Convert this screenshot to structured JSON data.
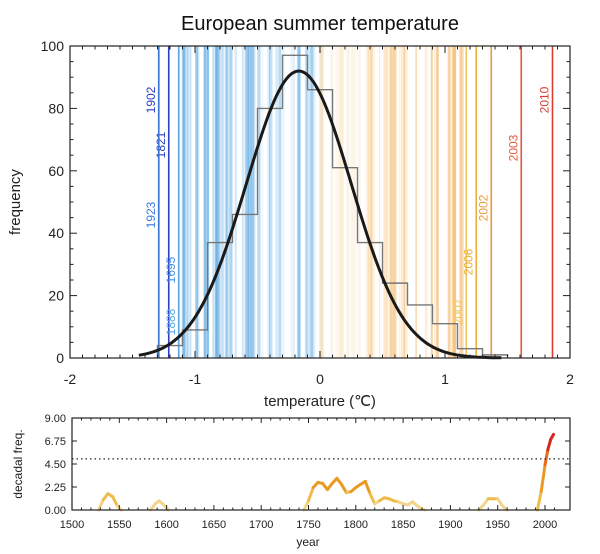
{
  "chart_data": [
    {
      "type": "bar",
      "title": "European summer temperature",
      "xlabel": "temperature (℃)",
      "ylabel": "frequency",
      "xlim": [
        -2,
        2
      ],
      "ylim": [
        0,
        100
      ],
      "xticks": [
        "-2",
        "-1",
        "0",
        "1",
        "2"
      ],
      "yticks": [
        "0",
        "20",
        "40",
        "60",
        "80",
        "100"
      ],
      "histogram": {
        "bin_edges": [
          -1.3,
          -1.1,
          -0.9,
          -0.7,
          -0.5,
          -0.3,
          -0.1,
          0.1,
          0.3,
          0.5,
          0.7,
          0.9,
          1.1,
          1.3,
          1.5
        ],
        "counts": [
          4,
          9,
          37,
          46,
          80,
          97,
          86,
          61,
          37,
          24,
          17,
          11,
          3,
          1
        ]
      },
      "fit_curve": {
        "type": "gaussian",
        "mean": -0.17,
        "sd": 0.42,
        "peak": 92,
        "x_range": [
          -1.45,
          1.45
        ]
      },
      "year_lines": [
        {
          "year": "1902",
          "x": -1.29,
          "color": "#2b3fc4"
        },
        {
          "year": "1821",
          "x": -1.21,
          "color": "#2b3fc4"
        },
        {
          "year": "1923",
          "x": -1.29,
          "color": "#3a78d8"
        },
        {
          "year": "1695",
          "x": -1.13,
          "color": "#3f8fe0"
        },
        {
          "year": "1888",
          "x": -1.13,
          "color": "#5aa8e8"
        },
        {
          "year": "2007",
          "x": 1.17,
          "color": "#f2c75c"
        },
        {
          "year": "2006",
          "x": 1.25,
          "color": "#eeae3a"
        },
        {
          "year": "2002",
          "x": 1.37,
          "color": "#e89b3a"
        },
        {
          "year": "2003",
          "x": 1.61,
          "color": "#e4573e"
        },
        {
          "year": "2010",
          "x": 1.86,
          "color": "#dd3b33"
        }
      ],
      "background_years_note": "thin vertical lines for every year, blue for cold, orange for warm"
    },
    {
      "type": "line",
      "xlabel": "year",
      "ylabel": "decadal freq.",
      "xlim": [
        1500,
        2015
      ],
      "ylim": [
        0,
        9
      ],
      "xticks": [
        "1500",
        "1550",
        "1600",
        "1650",
        "1700",
        "1750",
        "1800",
        "1850",
        "1900",
        "1950",
        "2000"
      ],
      "yticks": [
        "0.00",
        "2.25",
        "4.50",
        "6.75",
        "9.00"
      ],
      "threshold": 5.0,
      "segments": [
        {
          "x": [
            1528,
            1533,
            1538,
            1543,
            1548,
            1552
          ],
          "y": [
            0,
            1.0,
            1.6,
            1.3,
            0.4,
            0
          ]
        },
        {
          "x": [
            1583,
            1588,
            1592,
            1597,
            1602
          ],
          "y": [
            0,
            0.6,
            0.9,
            0.5,
            0
          ]
        },
        {
          "x": [
            1745,
            1750,
            1755,
            1760,
            1765,
            1770,
            1775,
            1780,
            1785,
            1790,
            1795,
            1800,
            1805,
            1810,
            1815,
            1820,
            1825,
            1830,
            1835,
            1840,
            1845,
            1850,
            1855,
            1860,
            1865,
            1870,
            1873
          ],
          "y": [
            0,
            0.9,
            2.2,
            2.7,
            2.6,
            2.0,
            2.6,
            3.1,
            2.5,
            1.7,
            1.8,
            2.2,
            2.5,
            2.8,
            1.6,
            0.6,
            0.9,
            1.2,
            1.1,
            0.9,
            0.8,
            0.6,
            0.5,
            0.8,
            0.4,
            0.1,
            0
          ]
        },
        {
          "x": [
            1930,
            1935,
            1940,
            1945,
            1950,
            1955,
            1960
          ],
          "y": [
            0,
            0.5,
            1.1,
            1.1,
            1.1,
            0.4,
            0
          ]
        },
        {
          "x": [
            1992,
            1996,
            2000,
            2003,
            2006,
            2009
          ],
          "y": [
            0,
            1.8,
            4.4,
            5.9,
            6.9,
            7.4
          ]
        }
      ]
    }
  ]
}
